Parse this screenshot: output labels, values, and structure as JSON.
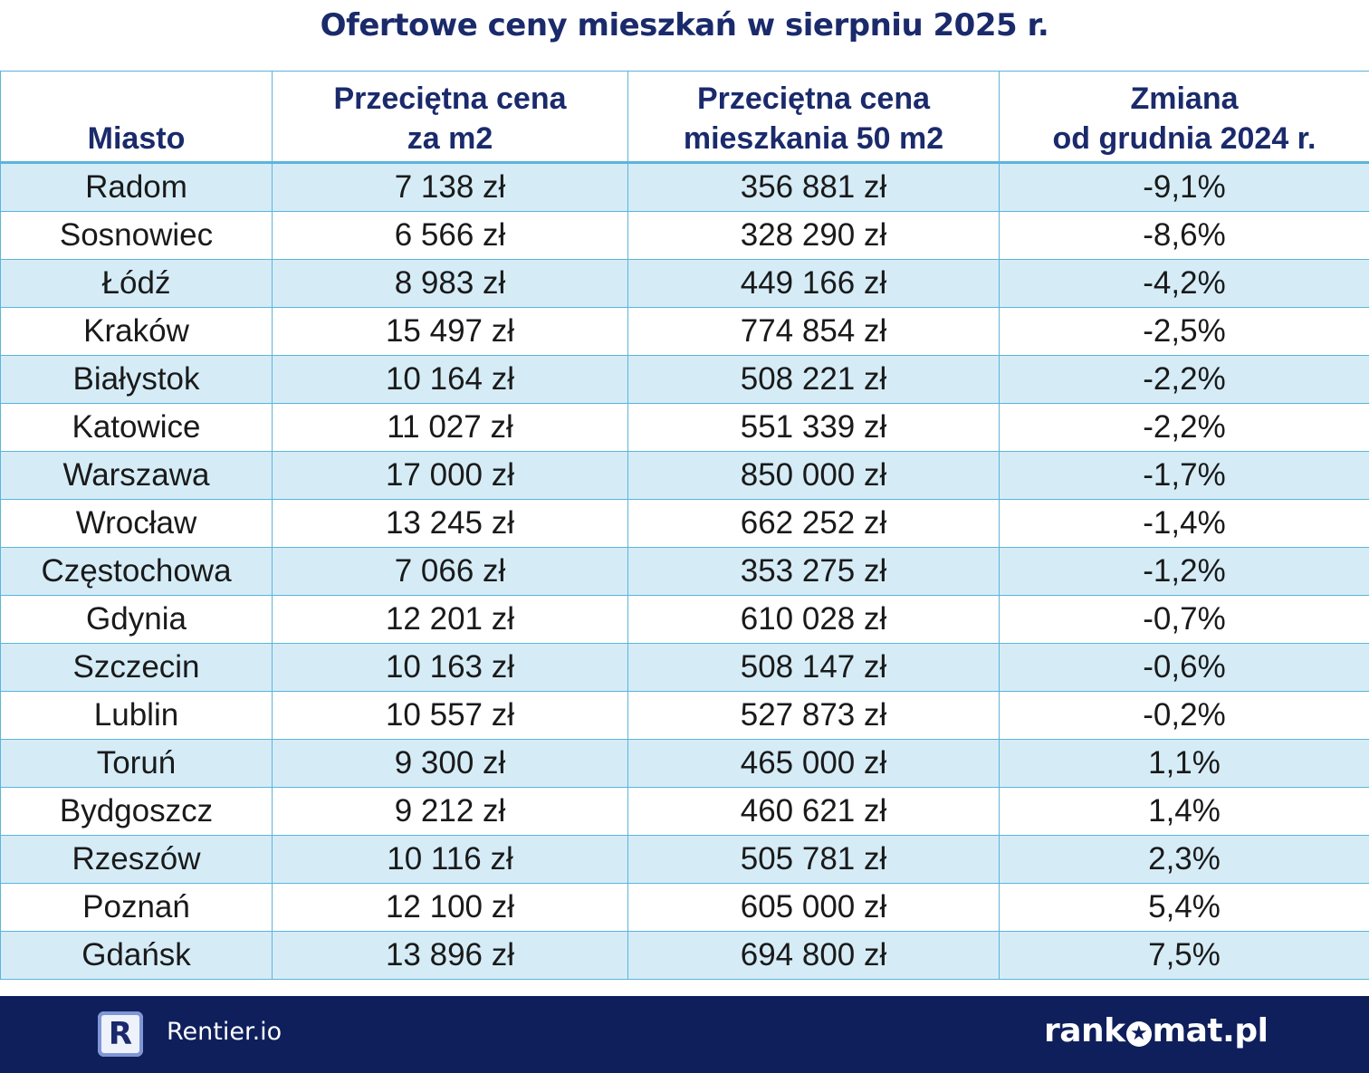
{
  "title": "Ofertowe ceny mieszkań w sierpniu 2025 r.",
  "table": {
    "headers": [
      {
        "line1": "",
        "line2": "Miasto"
      },
      {
        "line1": "Przeciętna cena",
        "line2": "za m2"
      },
      {
        "line1": "Przeciętna cena",
        "line2": "mieszkania 50 m2"
      },
      {
        "line1": "Zmiana",
        "line2": "od grudnia 2024 r."
      }
    ],
    "rows": [
      [
        "Radom",
        "7 138 zł",
        "356 881 zł",
        "-9,1%"
      ],
      [
        "Sosnowiec",
        "6 566 zł",
        "328 290 zł",
        "-8,6%"
      ],
      [
        "Łódź",
        "8 983 zł",
        "449 166 zł",
        "-4,2%"
      ],
      [
        "Kraków",
        "15 497 zł",
        "774 854 zł",
        "-2,5%"
      ],
      [
        "Białystok",
        "10 164 zł",
        "508 221 zł",
        "-2,2%"
      ],
      [
        "Katowice",
        "11 027 zł",
        "551 339 zł",
        "-2,2%"
      ],
      [
        "Warszawa",
        "17 000 zł",
        "850 000 zł",
        "-1,7%"
      ],
      [
        "Wrocław",
        "13 245 zł",
        "662 252 zł",
        "-1,4%"
      ],
      [
        "Częstochowa",
        "7 066 zł",
        "353 275 zł",
        "-1,2%"
      ],
      [
        "Gdynia",
        "12 201 zł",
        "610 028 zł",
        "-0,7%"
      ],
      [
        "Szczecin",
        "10 163 zł",
        "508 147 zł",
        "-0,6%"
      ],
      [
        "Lublin",
        "10 557 zł",
        "527 873 zł",
        "-0,2%"
      ],
      [
        "Toruń",
        "9 300 zł",
        "465 000 zł",
        "1,1%"
      ],
      [
        "Bydgoszcz",
        "9 212 zł",
        "460 621 zł",
        "1,4%"
      ],
      [
        "Rzeszów",
        "10 116 zł",
        "505 781 zł",
        "2,3%"
      ],
      [
        "Poznań",
        "12 100 zł",
        "605 000 zł",
        "5,4%"
      ],
      [
        "Gdańsk",
        "13 896 zł",
        "694 800 zł",
        "7,5%"
      ]
    ]
  },
  "footer": {
    "left_logo_letter": "R",
    "left_brand": "Rentier.io",
    "right_brand_prefix": "rank",
    "right_brand_star": "★",
    "right_brand_suffix": "mat.pl"
  },
  "colors": {
    "title": "#1a2a6b",
    "row_band": "#d5ecf7",
    "border": "#5cb4da",
    "footer_bg": "#0e1f5c"
  }
}
